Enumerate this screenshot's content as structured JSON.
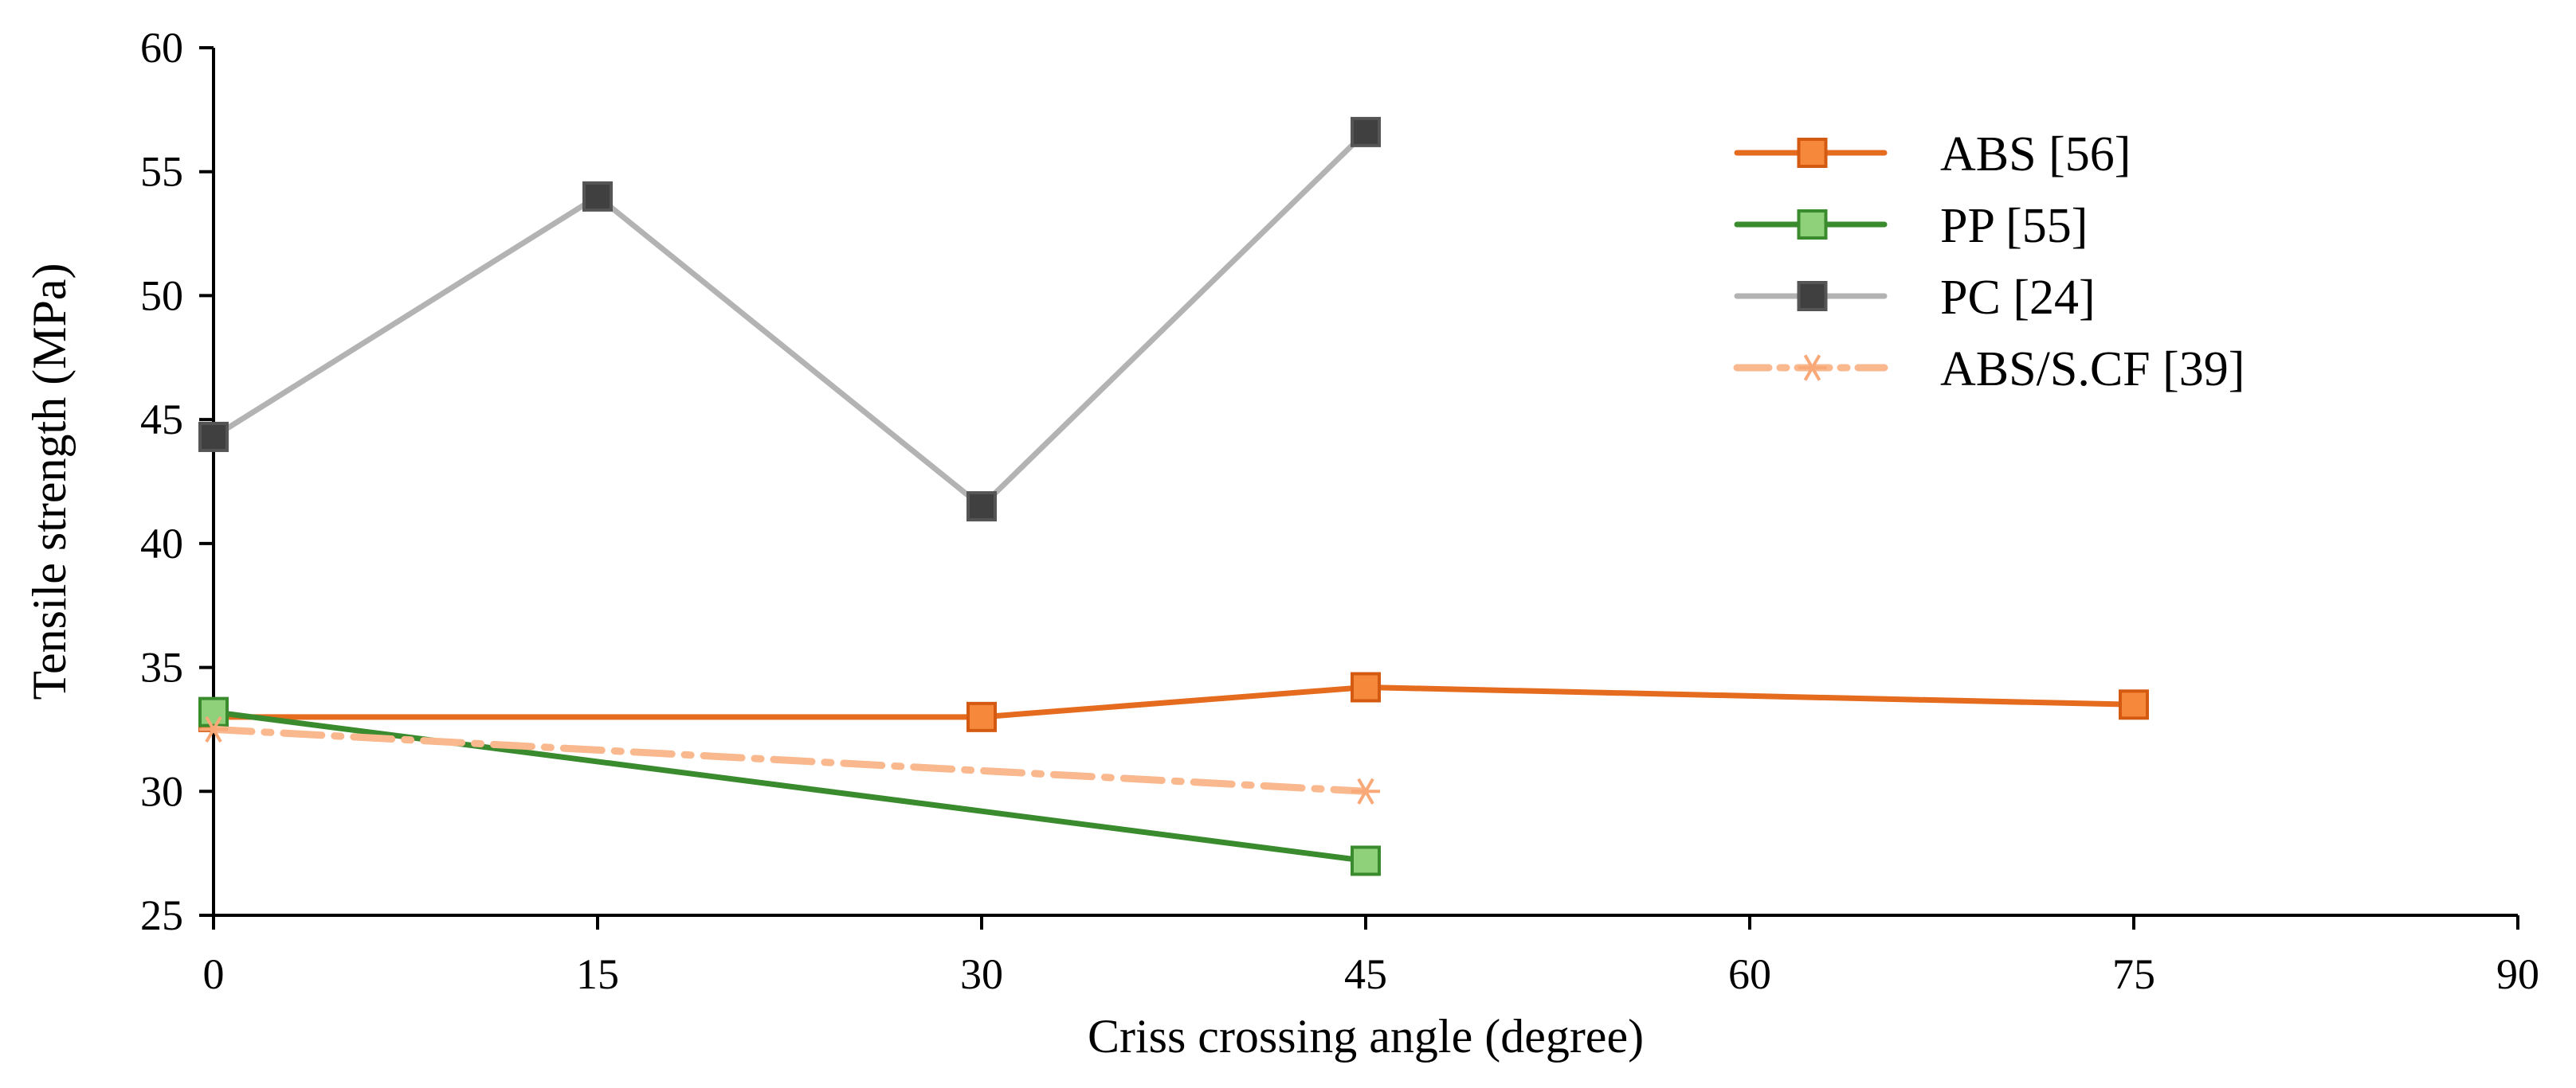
{
  "chart_data": {
    "type": "line",
    "title": "",
    "xlabel": "Criss crossing angle (degree)",
    "ylabel": "Tensile strength (MPa)",
    "xlim": [
      0,
      90
    ],
    "ylim": [
      25,
      60
    ],
    "xticks": [
      0,
      15,
      30,
      45,
      60,
      75,
      90
    ],
    "yticks": [
      25,
      30,
      35,
      40,
      45,
      50,
      55,
      60
    ],
    "grid": false,
    "legend_position": "top-right",
    "series": [
      {
        "name": "ABS [56]",
        "color": "#e56b1f",
        "marker_fill": "#f5883a",
        "marker_stroke": "#d45a12",
        "line_style": "solid",
        "marker": "square",
        "x": [
          0,
          30,
          45,
          75
        ],
        "y": [
          33,
          33,
          34.2,
          33.5
        ]
      },
      {
        "name": "PP [55]",
        "color": "#3a8a2e",
        "marker_fill": "#8fd17a",
        "marker_stroke": "#3a8a2e",
        "line_style": "solid",
        "marker": "square",
        "x": [
          0,
          45
        ],
        "y": [
          33.2,
          27.2
        ]
      },
      {
        "name": "PC [24]",
        "color": "#b3b3b3",
        "marker_fill": "#404040",
        "marker_stroke": "#555555",
        "line_style": "solid",
        "marker": "square",
        "x": [
          0,
          15,
          30,
          45
        ],
        "y": [
          44.3,
          54,
          41.5,
          56.6
        ]
      },
      {
        "name": "ABS/S.CF [39]",
        "color": "#f9b88e",
        "marker_fill": "none",
        "marker_stroke": "#f9a878",
        "line_style": "dash-dot",
        "marker": "star",
        "x": [
          0,
          45
        ],
        "y": [
          32.5,
          30
        ]
      }
    ]
  }
}
